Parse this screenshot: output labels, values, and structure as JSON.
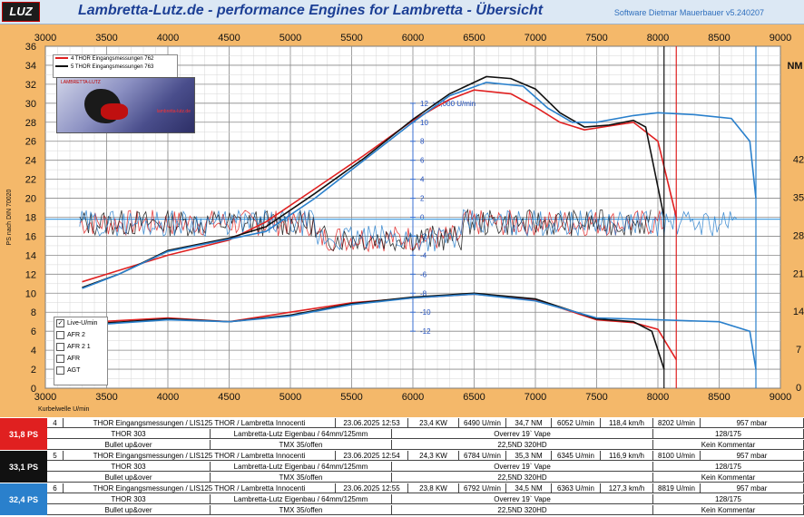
{
  "header": {
    "logo_text": "LUZ",
    "title": "Lambretta-Lutz.de - performance Engines for Lambretta - Übersicht",
    "software": "Software Dietmar Mauerbauer v5.240207"
  },
  "chart_data": {
    "type": "line",
    "x_axis": {
      "ticks": [
        3000,
        3500,
        4000,
        4500,
        5000,
        5500,
        6000,
        6500,
        7000,
        7500,
        8000,
        8500,
        9000
      ],
      "label": "Kurbelwelle U/min",
      "range": [
        3000,
        9000
      ]
    },
    "y_left": {
      "ticks": [
        0,
        2,
        4,
        6,
        8,
        10,
        12,
        14,
        16,
        18,
        20,
        22,
        24,
        26,
        28,
        30,
        32,
        34,
        36
      ],
      "label": "PS nach DIN 70020",
      "range": [
        0,
        36
      ]
    },
    "y_right": {
      "label": "NM",
      "ticks": [
        0,
        7,
        14,
        21,
        28,
        35,
        42
      ]
    },
    "y_afr_center": {
      "ticks": [
        "12",
        "10",
        "8",
        "6",
        "4",
        "2",
        "0",
        "-2",
        "-4",
        "-6",
        "-8",
        "-10",
        "-12"
      ],
      "label": "x1,000 U/min"
    },
    "legend_position": "top-left",
    "series": [
      {
        "name": "4  THOR Eingangsmessungen 762",
        "color": "#e02020",
        "power": [
          [
            3300,
            11.2
          ],
          [
            3600,
            12.4
          ],
          [
            4000,
            14.0
          ],
          [
            4500,
            15.6
          ],
          [
            4800,
            17.5
          ],
          [
            5200,
            21.0
          ],
          [
            5600,
            24.5
          ],
          [
            6000,
            28.2
          ],
          [
            6300,
            30.4
          ],
          [
            6500,
            31.4
          ],
          [
            6800,
            31.0
          ],
          [
            7000,
            29.6
          ],
          [
            7200,
            28.0
          ],
          [
            7400,
            27.2
          ],
          [
            7600,
            27.6
          ],
          [
            7800,
            28.0
          ],
          [
            8000,
            26.0
          ],
          [
            8150,
            18.0
          ]
        ],
        "torque": [
          [
            3300,
            6.9
          ],
          [
            4000,
            7.4
          ],
          [
            4500,
            7.0
          ],
          [
            5000,
            8.0
          ],
          [
            5500,
            9.0
          ],
          [
            6000,
            9.5
          ],
          [
            6500,
            9.9
          ],
          [
            7000,
            9.3
          ],
          [
            7500,
            7.2
          ],
          [
            7800,
            6.9
          ],
          [
            8000,
            6.2
          ],
          [
            8150,
            3.0
          ]
        ]
      },
      {
        "name": "5  THOR Eingangsmessungen 763",
        "color": "#111111",
        "power": [
          [
            3300,
            10.6
          ],
          [
            3600,
            12.0
          ],
          [
            4000,
            14.5
          ],
          [
            4500,
            15.8
          ],
          [
            4800,
            17.0
          ],
          [
            5200,
            20.5
          ],
          [
            5600,
            24.2
          ],
          [
            6000,
            28.3
          ],
          [
            6300,
            31.0
          ],
          [
            6600,
            32.8
          ],
          [
            6800,
            32.6
          ],
          [
            7000,
            31.5
          ],
          [
            7200,
            29.0
          ],
          [
            7400,
            27.5
          ],
          [
            7600,
            27.7
          ],
          [
            7800,
            28.2
          ],
          [
            7900,
            27.5
          ],
          [
            8050,
            18.0
          ]
        ],
        "torque": [
          [
            3300,
            6.7
          ],
          [
            4000,
            7.3
          ],
          [
            4500,
            7.0
          ],
          [
            5000,
            7.7
          ],
          [
            5500,
            8.9
          ],
          [
            6000,
            9.6
          ],
          [
            6500,
            10.0
          ],
          [
            7000,
            9.4
          ],
          [
            7500,
            7.3
          ],
          [
            7800,
            7.0
          ],
          [
            7950,
            6.0
          ],
          [
            8050,
            2.0
          ]
        ]
      },
      {
        "name": "6",
        "color": "#2a80cc",
        "power": [
          [
            3300,
            10.5
          ],
          [
            3600,
            12.0
          ],
          [
            4000,
            14.4
          ],
          [
            4500,
            15.7
          ],
          [
            4800,
            16.5
          ],
          [
            5200,
            20.0
          ],
          [
            5600,
            24.0
          ],
          [
            6000,
            28.0
          ],
          [
            6300,
            30.8
          ],
          [
            6600,
            32.2
          ],
          [
            6900,
            31.8
          ],
          [
            7100,
            29.5
          ],
          [
            7300,
            28.0
          ],
          [
            7500,
            28.0
          ],
          [
            7800,
            28.7
          ],
          [
            8000,
            29.0
          ],
          [
            8300,
            28.8
          ],
          [
            8600,
            28.4
          ],
          [
            8750,
            26.0
          ],
          [
            8800,
            20.0
          ]
        ],
        "torque": [
          [
            3300,
            6.6
          ],
          [
            4000,
            7.2
          ],
          [
            4500,
            7.0
          ],
          [
            5000,
            7.6
          ],
          [
            5500,
            8.8
          ],
          [
            6000,
            9.5
          ],
          [
            6500,
            9.9
          ],
          [
            7000,
            9.2
          ],
          [
            7500,
            7.4
          ],
          [
            8000,
            7.2
          ],
          [
            8500,
            7.0
          ],
          [
            8750,
            6.0
          ],
          [
            8800,
            2.0
          ]
        ]
      }
    ],
    "afr_band": {
      "center": 17.8
    }
  },
  "legend_box": {
    "entries": [
      "4  THOR Eingangsmessungen 762",
      "5  THOR Eingangsmessungen 763"
    ],
    "photo_caption": "LAMBRETTA-LUTZ",
    "photo_caption2": "lambretta-lutz.de"
  },
  "checkbox_panel": {
    "items": [
      {
        "label": "Live-U/min",
        "checked": true
      },
      {
        "label": "AFR 2",
        "checked": false
      },
      {
        "label": "AFR 2 1",
        "checked": false
      },
      {
        "label": "AFR",
        "checked": false
      },
      {
        "label": "AGT",
        "checked": false
      }
    ]
  },
  "runs": [
    {
      "badge": "31,8 PS",
      "badge_color": "#e02020",
      "num": "4",
      "title": "THOR Eingangsmessungen / LIS125 THOR / Lambretta Innocenti",
      "date": "23.06.2025 12:53",
      "kw": "23,4 KW",
      "kw_rpm": "6490 U/min",
      "nm": "34,7 NM",
      "nm_rpm": "6052 U/min",
      "speed": "118,4 km/h",
      "speed_rpm": "8202 U/min",
      "mbar": "957 mbar",
      "r2": [
        "THOR 303",
        "Lambretta-Lutz Eigenbau / 64mm/125mm",
        "Overrev 19` Vape",
        "128/175"
      ],
      "r3": [
        "Bullet up&over",
        "TMX 35/offen",
        "22,5ND 320HD",
        "Kein Kommentar"
      ]
    },
    {
      "badge": "33,1 PS",
      "badge_color": "#111111",
      "num": "5",
      "title": "THOR Eingangsmessungen / LIS125 THOR / Lambretta Innocenti",
      "date": "23.06.2025 12:54",
      "kw": "24,3 KW",
      "kw_rpm": "6784 U/min",
      "nm": "35,3 NM",
      "nm_rpm": "6345 U/min",
      "speed": "116,9 km/h",
      "speed_rpm": "8100 U/min",
      "mbar": "957 mbar",
      "r2": [
        "THOR 303",
        "Lambretta-Lutz Eigenbau / 64mm/125mm",
        "Overrev 19` Vape",
        "128/175"
      ],
      "r3": [
        "Bullet up&over",
        "TMX 35/offen",
        "22,5ND 320HD",
        "Kein Kommentar"
      ]
    },
    {
      "badge": "32,4 PS",
      "badge_color": "#2a80cc",
      "num": "6",
      "title": "THOR Eingangsmessungen / LIS125 THOR / Lambretta Innocenti",
      "date": "23.06.2025 12:55",
      "kw": "23,8 KW",
      "kw_rpm": "6792 U/min",
      "nm": "34,5 NM",
      "nm_rpm": "6363 U/min",
      "speed": "127,3 km/h",
      "speed_rpm": "8819 U/min",
      "mbar": "957 mbar",
      "r2": [
        "THOR 303",
        "Lambretta-Lutz Eigenbau / 64mm/125mm",
        "Overrev 19` Vape",
        "128/175"
      ],
      "r3": [
        "Bullet up&over",
        "TMX 35/offen",
        "22,5ND 320HD",
        "Kein Kommentar"
      ]
    }
  ]
}
